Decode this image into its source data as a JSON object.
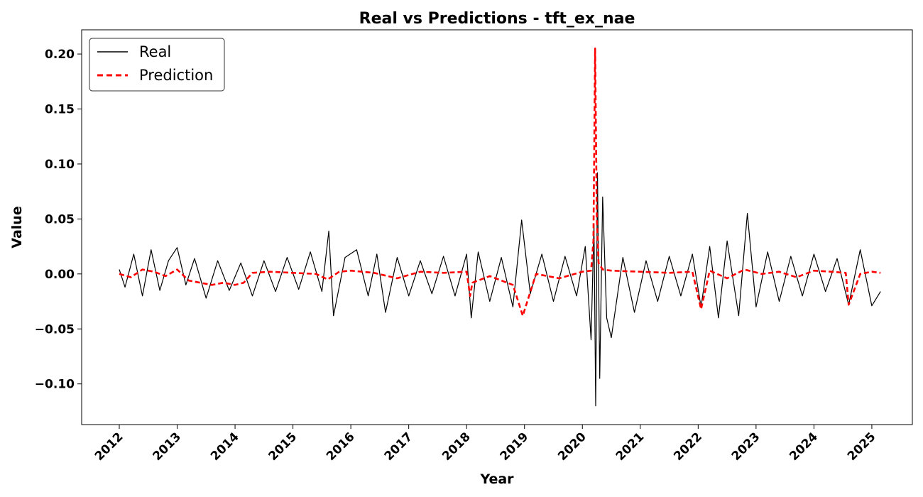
{
  "chart_data": {
    "type": "line",
    "title": "Real vs Predictions - tft_ex_nae",
    "xlabel": "Year",
    "ylabel": "Value",
    "xlim": [
      2011.35,
      2025.7
    ],
    "ylim": [
      -0.137,
      0.222
    ],
    "x_ticks": [
      2012,
      2013,
      2014,
      2015,
      2016,
      2017,
      2018,
      2019,
      2020,
      2021,
      2022,
      2023,
      2024,
      2025
    ],
    "x_tick_labels": [
      "2012",
      "2013",
      "2014",
      "2015",
      "2016",
      "2017",
      "2018",
      "2019",
      "2020",
      "2021",
      "2022",
      "2023",
      "2024",
      "2025"
    ],
    "y_ticks": [
      -0.1,
      -0.05,
      0.0,
      0.05,
      0.1,
      0.15,
      0.2
    ],
    "y_tick_labels": [
      "−0.10",
      "−0.05",
      "0.00",
      "0.05",
      "0.10",
      "0.15",
      "0.20"
    ],
    "grid": false,
    "legend_position": "upper-left",
    "series": [
      {
        "name": "Real",
        "color": "#000000",
        "style": "solid",
        "x": [
          2012.0,
          2012.1,
          2012.25,
          2012.4,
          2012.55,
          2012.7,
          2012.85,
          2013.0,
          2013.15,
          2013.3,
          2013.5,
          2013.7,
          2013.9,
          2014.1,
          2014.3,
          2014.5,
          2014.7,
          2014.9,
          2015.1,
          2015.3,
          2015.5,
          2015.62,
          2015.7,
          2015.9,
          2016.1,
          2016.3,
          2016.45,
          2016.6,
          2016.8,
          2017.0,
          2017.2,
          2017.4,
          2017.6,
          2017.8,
          2018.0,
          2018.08,
          2018.2,
          2018.4,
          2018.6,
          2018.8,
          2018.95,
          2019.1,
          2019.3,
          2019.5,
          2019.7,
          2019.9,
          2020.05,
          2020.15,
          2020.2,
          2020.23,
          2020.26,
          2020.3,
          2020.35,
          2020.42,
          2020.5,
          2020.7,
          2020.9,
          2021.1,
          2021.3,
          2021.5,
          2021.7,
          2021.9,
          2022.05,
          2022.2,
          2022.35,
          2022.5,
          2022.7,
          2022.85,
          2023.0,
          2023.2,
          2023.4,
          2023.6,
          2023.8,
          2024.0,
          2024.2,
          2024.4,
          2024.6,
          2024.8,
          2025.0,
          2025.15
        ],
        "y": [
          0.004,
          -0.012,
          0.018,
          -0.02,
          0.022,
          -0.015,
          0.012,
          0.024,
          -0.01,
          0.014,
          -0.022,
          0.012,
          -0.015,
          0.01,
          -0.02,
          0.012,
          -0.016,
          0.015,
          -0.014,
          0.02,
          -0.016,
          0.039,
          -0.038,
          0.015,
          0.022,
          -0.02,
          0.018,
          -0.035,
          0.015,
          -0.02,
          0.012,
          -0.018,
          0.016,
          -0.02,
          0.018,
          -0.04,
          0.02,
          -0.025,
          0.015,
          -0.03,
          0.049,
          -0.018,
          0.018,
          -0.025,
          0.016,
          -0.02,
          0.025,
          -0.06,
          0.045,
          -0.12,
          0.092,
          -0.095,
          0.07,
          -0.04,
          -0.058,
          0.015,
          -0.035,
          0.012,
          -0.025,
          0.016,
          -0.02,
          0.018,
          -0.03,
          0.025,
          -0.04,
          0.03,
          -0.038,
          0.055,
          -0.03,
          0.02,
          -0.025,
          0.016,
          -0.02,
          0.018,
          -0.016,
          0.014,
          -0.028,
          0.022,
          -0.029,
          -0.016
        ]
      },
      {
        "name": "Prediction",
        "color": "#ff0000",
        "style": "dashed",
        "x": [
          2012.0,
          2012.2,
          2012.4,
          2012.6,
          2012.8,
          2013.0,
          2013.2,
          2013.4,
          2013.6,
          2013.8,
          2014.0,
          2014.15,
          2014.3,
          2014.6,
          2015.0,
          2015.4,
          2015.6,
          2015.8,
          2016.0,
          2016.4,
          2016.8,
          2017.2,
          2017.6,
          2018.0,
          2018.06,
          2018.1,
          2018.4,
          2018.8,
          2018.97,
          2019.2,
          2019.6,
          2020.0,
          2020.15,
          2020.19,
          2020.22,
          2020.25,
          2020.28,
          2020.35,
          2020.5,
          2021.0,
          2021.5,
          2021.9,
          2022.05,
          2022.2,
          2022.5,
          2022.8,
          2023.1,
          2023.4,
          2023.7,
          2024.0,
          2024.3,
          2024.55,
          2024.6,
          2024.8,
          2025.0,
          2025.15
        ],
        "y": [
          0.0,
          -0.003,
          0.004,
          0.002,
          -0.002,
          0.004,
          -0.006,
          -0.008,
          -0.01,
          -0.008,
          -0.01,
          -0.008,
          0.001,
          0.002,
          0.001,
          0.0,
          -0.005,
          0.002,
          0.003,
          0.001,
          -0.004,
          0.002,
          0.001,
          0.002,
          -0.02,
          -0.008,
          -0.002,
          -0.01,
          -0.038,
          0.0,
          -0.004,
          0.002,
          0.003,
          0.03,
          0.205,
          0.05,
          0.01,
          0.004,
          0.003,
          0.002,
          0.001,
          0.002,
          -0.032,
          0.003,
          -0.004,
          0.004,
          0.0,
          0.002,
          -0.003,
          0.003,
          0.002,
          0.001,
          -0.028,
          0.0,
          0.002,
          0.001
        ]
      }
    ]
  }
}
